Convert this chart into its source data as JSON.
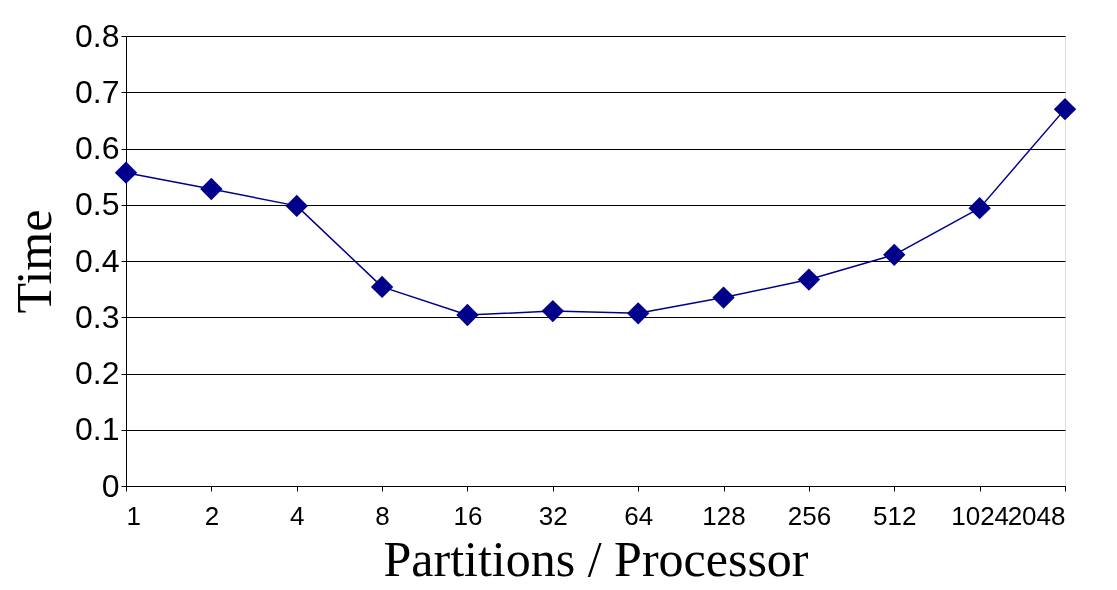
{
  "chart_data": {
    "type": "line",
    "xlabel": "Partitions / Processor",
    "ylabel": "Time",
    "categories": [
      "1",
      "2",
      "4",
      "8",
      "16",
      "32",
      "64",
      "128",
      "256",
      "512",
      "1024",
      "2048"
    ],
    "series": [
      {
        "color": "#00008b",
        "values": [
          0.557,
          0.528,
          0.498,
          0.354,
          0.304,
          0.311,
          0.307,
          0.335,
          0.367,
          0.411,
          0.494,
          0.67
        ]
      }
    ],
    "ylim": [
      0,
      0.8
    ],
    "yticks": [
      0,
      0.1,
      0.2,
      0.3,
      0.4,
      0.5,
      0.6,
      0.7,
      0.8
    ],
    "grid": "y",
    "marker": "diamond",
    "line_style": "solid"
  }
}
